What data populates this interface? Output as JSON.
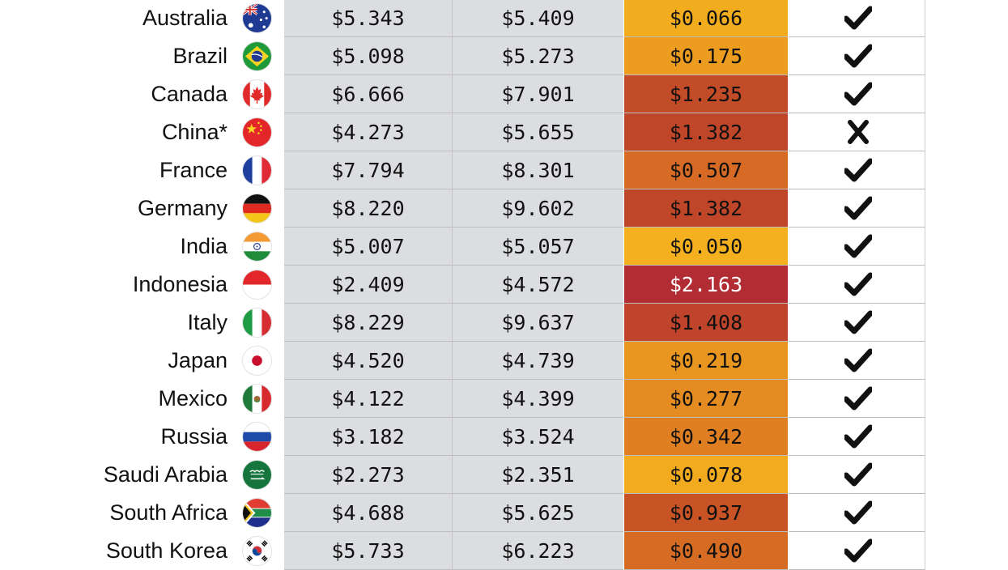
{
  "chart_data": {
    "type": "table",
    "columns": [
      "",
      "",
      "",
      "",
      ""
    ],
    "rows": [
      {
        "country": "Australia",
        "flag": "australia-flag-icon",
        "v1": "$5.343",
        "v2": "$5.409",
        "diff": "$0.066",
        "diff_value": 0.066,
        "mark": "check",
        "diff_color": "#f2ad1f",
        "diff_text_color": "#111111"
      },
      {
        "country": "Brazil",
        "flag": "brazil-flag-icon",
        "v1": "$5.098",
        "v2": "$5.273",
        "diff": "$0.175",
        "diff_value": 0.175,
        "mark": "check",
        "diff_color": "#ec9d1f",
        "diff_text_color": "#111111"
      },
      {
        "country": "Canada",
        "flag": "canada-flag-icon",
        "v1": "$6.666",
        "v2": "$7.901",
        "diff": "$1.235",
        "diff_value": 1.235,
        "mark": "check",
        "diff_color": "#c24b28",
        "diff_text_color": "#111111"
      },
      {
        "country": "China*",
        "flag": "china-flag-icon",
        "v1": "$4.273",
        "v2": "$5.655",
        "diff": "$1.382",
        "diff_value": 1.382,
        "mark": "cross",
        "diff_color": "#c0462a",
        "diff_text_color": "#111111"
      },
      {
        "country": "France",
        "flag": "france-flag-icon",
        "v1": "$7.794",
        "v2": "$8.301",
        "diff": "$0.507",
        "diff_value": 0.507,
        "mark": "check",
        "diff_color": "#d76a24",
        "diff_text_color": "#111111"
      },
      {
        "country": "Germany",
        "flag": "germany-flag-icon",
        "v1": "$8.220",
        "v2": "$9.602",
        "diff": "$1.382",
        "diff_value": 1.382,
        "mark": "check",
        "diff_color": "#c0462a",
        "diff_text_color": "#111111"
      },
      {
        "country": "India",
        "flag": "india-flag-icon",
        "v1": "$5.007",
        "v2": "$5.057",
        "diff": "$0.050",
        "diff_value": 0.05,
        "mark": "check",
        "diff_color": "#f4b01e",
        "diff_text_color": "#111111"
      },
      {
        "country": "Indonesia",
        "flag": "indonesia-flag-icon",
        "v1": "$2.409",
        "v2": "$4.572",
        "diff": "$2.163",
        "diff_value": 2.163,
        "mark": "check",
        "diff_color": "#b22d33",
        "diff_text_color": "#ffffff"
      },
      {
        "country": "Italy",
        "flag": "italy-flag-icon",
        "v1": "$8.229",
        "v2": "$9.637",
        "diff": "$1.408",
        "diff_value": 1.408,
        "mark": "check",
        "diff_color": "#bf442b",
        "diff_text_color": "#111111"
      },
      {
        "country": "Japan",
        "flag": "japan-flag-icon",
        "v1": "$4.520",
        "v2": "$4.739",
        "diff": "$0.219",
        "diff_value": 0.219,
        "mark": "check",
        "diff_color": "#e99620",
        "diff_text_color": "#111111"
      },
      {
        "country": "Mexico",
        "flag": "mexico-flag-icon",
        "v1": "$4.122",
        "v2": "$4.399",
        "diff": "$0.277",
        "diff_value": 0.277,
        "mark": "check",
        "diff_color": "#e48b21",
        "diff_text_color": "#111111"
      },
      {
        "country": "Russia",
        "flag": "russia-flag-icon",
        "v1": "$3.182",
        "v2": "$3.524",
        "diff": "$0.342",
        "diff_value": 0.342,
        "mark": "check",
        "diff_color": "#df7f22",
        "diff_text_color": "#111111"
      },
      {
        "country": "Saudi Arabia",
        "flag": "saudi-arabia-flag-icon",
        "v1": "$2.273",
        "v2": "$2.351",
        "diff": "$0.078",
        "diff_value": 0.078,
        "mark": "check",
        "diff_color": "#f2ab1f",
        "diff_text_color": "#111111"
      },
      {
        "country": "South Africa",
        "flag": "south-africa-flag-icon",
        "v1": "$4.688",
        "v2": "$5.625",
        "diff": "$0.937",
        "diff_value": 0.937,
        "mark": "check",
        "diff_color": "#c85426",
        "diff_text_color": "#111111"
      },
      {
        "country": "South Korea",
        "flag": "south-korea-flag-icon",
        "v1": "$5.733",
        "v2": "$6.223",
        "diff": "$0.490",
        "diff_value": 0.49,
        "mark": "check",
        "diff_color": "#d66c24",
        "diff_text_color": "#111111"
      }
    ]
  }
}
